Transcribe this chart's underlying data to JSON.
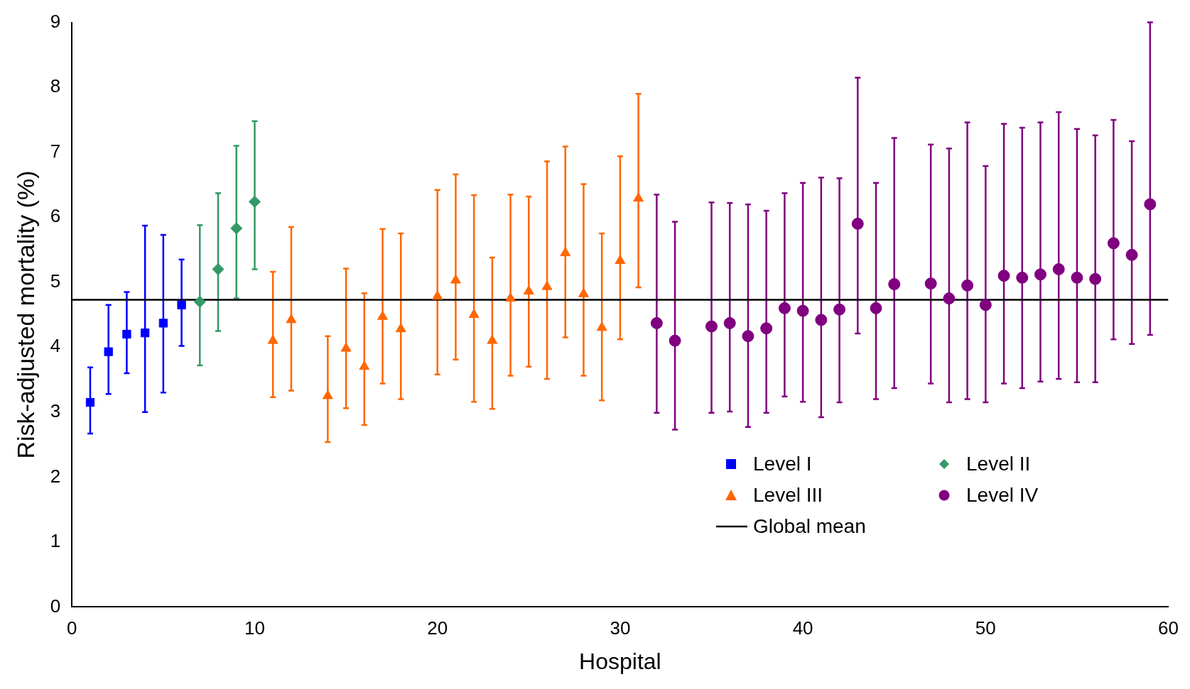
{
  "chart_data": {
    "type": "scatter",
    "xlabel": "Hospital",
    "ylabel": "Risk-adjusted mortality (%)",
    "xlim": [
      0,
      60
    ],
    "xticks": [
      0,
      10,
      20,
      30,
      40,
      50,
      60
    ],
    "ylim": [
      0,
      9
    ],
    "yticks": [
      0,
      1,
      2,
      3,
      4,
      5,
      6,
      7,
      8,
      9
    ],
    "grid": false,
    "legend": "bottom right",
    "series": [
      {
        "name": "Level I",
        "color": "#0000ff",
        "marker": "square",
        "x": [
          1,
          2,
          3,
          4,
          5,
          6
        ],
        "values": [
          3.15,
          3.93,
          4.2,
          4.22,
          4.37,
          4.65
        ],
        "errors": [
          [
            2.67,
            3.69
          ],
          [
            3.28,
            4.65
          ],
          [
            3.6,
            4.85
          ],
          [
            3.0,
            5.87
          ],
          [
            3.3,
            5.73
          ],
          [
            4.02,
            5.35
          ]
        ]
      },
      {
        "name": "Level II",
        "color": "#339966",
        "marker": "diamond",
        "x": [
          7,
          8,
          9,
          10
        ],
        "values": [
          4.7,
          5.2,
          5.83,
          6.24
        ],
        "errors": [
          [
            3.72,
            5.88
          ],
          [
            4.25,
            6.37
          ],
          [
            4.75,
            7.1
          ],
          [
            5.2,
            7.48
          ]
        ]
      },
      {
        "name": "Level III",
        "color": "#ff6600",
        "marker": "triangle",
        "x": [
          11,
          12,
          14,
          15,
          16,
          17,
          18,
          20,
          21,
          22,
          23,
          24,
          25,
          26,
          27,
          28,
          29,
          30,
          31
        ],
        "values": [
          4.1,
          4.42,
          3.25,
          3.98,
          3.7,
          4.47,
          4.28,
          4.78,
          5.03,
          4.5,
          4.1,
          4.75,
          4.86,
          4.93,
          5.45,
          4.82,
          4.3,
          5.33,
          6.29
        ],
        "errors": [
          [
            3.23,
            5.16
          ],
          [
            3.33,
            5.85
          ],
          [
            2.54,
            4.17
          ],
          [
            3.06,
            5.21
          ],
          [
            2.8,
            4.83
          ],
          [
            3.44,
            5.82
          ],
          [
            3.2,
            5.75
          ],
          [
            3.58,
            6.42
          ],
          [
            3.81,
            6.66
          ],
          [
            3.16,
            6.34
          ],
          [
            3.05,
            5.38
          ],
          [
            3.56,
            6.35
          ],
          [
            3.7,
            6.32
          ],
          [
            3.51,
            6.86
          ],
          [
            4.15,
            7.09
          ],
          [
            3.56,
            6.51
          ],
          [
            3.18,
            5.75
          ],
          [
            4.12,
            6.94
          ],
          [
            4.92,
            7.9
          ]
        ]
      },
      {
        "name": "Level IV",
        "color": "#800080",
        "marker": "circle",
        "x": [
          32,
          33,
          35,
          36,
          37,
          38,
          39,
          40,
          41,
          42,
          43,
          44,
          45,
          47,
          48,
          49,
          50,
          51,
          52,
          53,
          54,
          55,
          56,
          57,
          58,
          59
        ],
        "values": [
          4.37,
          4.1,
          4.32,
          4.37,
          4.17,
          4.29,
          4.6,
          4.56,
          4.42,
          4.58,
          5.9,
          4.6,
          4.97,
          4.98,
          4.75,
          4.95,
          4.65,
          5.1,
          5.07,
          5.12,
          5.2,
          5.07,
          5.05,
          5.6,
          5.42,
          6.2
        ],
        "errors": [
          [
            2.99,
            6.35
          ],
          [
            2.73,
            5.93
          ],
          [
            2.99,
            6.23
          ],
          [
            3.01,
            6.22
          ],
          [
            2.77,
            6.2
          ],
          [
            2.99,
            6.1
          ],
          [
            3.24,
            6.37
          ],
          [
            3.16,
            6.53
          ],
          [
            2.92,
            6.61
          ],
          [
            3.15,
            6.6
          ],
          [
            4.21,
            8.15
          ],
          [
            3.2,
            6.53
          ],
          [
            3.37,
            7.22
          ],
          [
            3.44,
            7.12
          ],
          [
            3.15,
            7.06
          ],
          [
            3.2,
            7.46
          ],
          [
            3.15,
            6.79
          ],
          [
            3.44,
            7.44
          ],
          [
            3.37,
            7.38
          ],
          [
            3.47,
            7.46
          ],
          [
            3.51,
            7.62
          ],
          [
            3.46,
            7.36
          ],
          [
            3.46,
            7.26
          ],
          [
            4.12,
            7.5
          ],
          [
            4.05,
            7.17
          ],
          [
            4.19,
            9.0
          ]
        ]
      }
    ],
    "ref_lines": [
      {
        "axis": "y",
        "value": 4.73,
        "label": "Global mean",
        "color": "#000000",
        "line_style": "solid"
      }
    ]
  }
}
